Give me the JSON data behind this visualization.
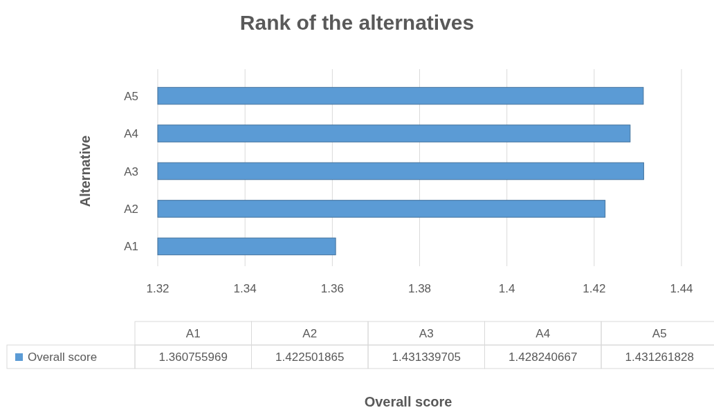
{
  "chart_data": [
    {
      "type": "bar",
      "orientation": "horizontal",
      "title": "Rank of the alternatives",
      "xlabel": "Overall score",
      "ylabel": "Alternative",
      "categories": [
        "A5",
        "A4",
        "A3",
        "A2",
        "A1"
      ],
      "series": [
        {
          "color": "#5b9bd5",
          "values": [
            1.431261828,
            1.428240667,
            1.431339705,
            1.422501865,
            1.360755969
          ]
        }
      ],
      "xlim": [
        1.32,
        1.44
      ],
      "xticks": [
        1.32,
        1.34,
        1.36,
        1.38,
        1.4,
        1.42,
        1.44
      ],
      "grid": "x"
    },
    {
      "type": "other",
      "categories": [
        "A1",
        "A2",
        "A3",
        "A4",
        "A5"
      ],
      "series": [
        {
          "name": "Overall score",
          "color": "#5b9bd5",
          "values": [
            1.360755969,
            1.422501865,
            1.431339705,
            1.428240667,
            1.431261828
          ]
        }
      ],
      "data_labels": true
    }
  ]
}
